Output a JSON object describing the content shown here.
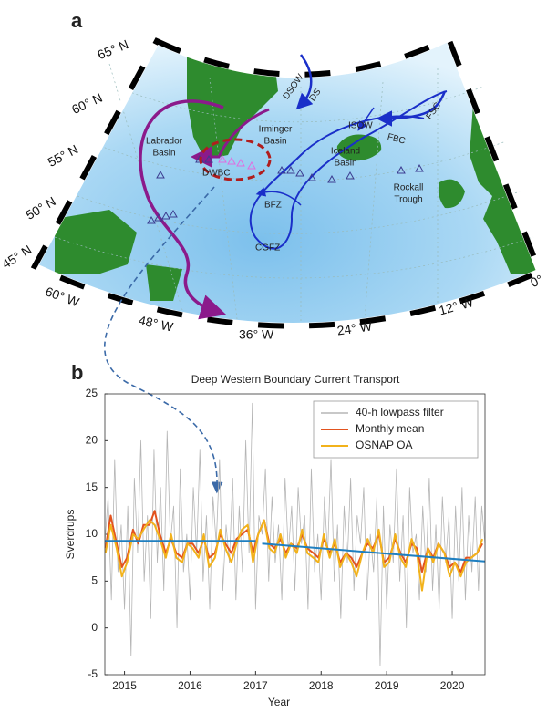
{
  "map": {
    "panel": "a",
    "lat_labels": [
      "65° N",
      "60° N",
      "55° N",
      "50° N",
      "45° N"
    ],
    "lon_labels": [
      "60° W",
      "48° W",
      "36° W",
      "24° W",
      "12° W",
      "0°"
    ],
    "regions": {
      "labrador": [
        "Labrador",
        "Basin"
      ],
      "irminger": [
        "Irminger",
        "Basin"
      ],
      "iceland": [
        "Iceland",
        "Basin"
      ],
      "rockall": [
        "Rockall",
        "Trough"
      ]
    },
    "currents": [
      "DWBC",
      "DSOW",
      "DS",
      "ISOW",
      "FBC",
      "FSC",
      "BFZ",
      "CGFZ"
    ]
  },
  "chart_data": {
    "type": "line",
    "panel": "b",
    "title": "Deep Western Boundary Current Transport",
    "xlabel": "Year",
    "ylabel": "Sverdrups",
    "xlim": [
      2014.7,
      2020.5
    ],
    "xticks": [
      2015,
      2016,
      2017,
      2018,
      2019,
      2020
    ],
    "ylim": [
      -5,
      25
    ],
    "yticks": [
      -5,
      0,
      5,
      10,
      15,
      20,
      25
    ],
    "legend": "upper right",
    "series": [
      {
        "name": "40-h lowpass filter",
        "color": "#b5b5b5",
        "width": 0.8,
        "x": [
          2014.7,
          2014.75,
          2014.8,
          2014.85,
          2014.9,
          2014.95,
          2015,
          2015.05,
          2015.1,
          2015.15,
          2015.2,
          2015.25,
          2015.3,
          2015.35,
          2015.4,
          2015.45,
          2015.5,
          2015.55,
          2015.6,
          2015.65,
          2015.7,
          2015.75,
          2015.8,
          2015.85,
          2015.9,
          2015.95,
          2016,
          2016.05,
          2016.1,
          2016.15,
          2016.2,
          2016.25,
          2016.3,
          2016.35,
          2016.4,
          2016.45,
          2016.5,
          2016.55,
          2016.6,
          2016.65,
          2016.7,
          2016.75,
          2016.8,
          2016.85,
          2016.9,
          2016.95,
          2017,
          2017.05,
          2017.1,
          2017.15,
          2017.2,
          2017.25,
          2017.3,
          2017.35,
          2017.4,
          2017.45,
          2017.5,
          2017.55,
          2017.6,
          2017.65,
          2017.7,
          2017.75,
          2017.8,
          2017.85,
          2017.9,
          2017.95,
          2018,
          2018.05,
          2018.1,
          2018.15,
          2018.2,
          2018.25,
          2018.3,
          2018.35,
          2018.4,
          2018.45,
          2018.5,
          2018.55,
          2018.6,
          2018.65,
          2018.7,
          2018.75,
          2018.8,
          2018.85,
          2018.9,
          2018.95,
          2019,
          2019.05,
          2019.1,
          2019.15,
          2019.2,
          2019.25,
          2019.3,
          2019.35,
          2019.4,
          2019.45,
          2019.5,
          2019.55,
          2019.6,
          2019.65,
          2019.7,
          2019.75,
          2019.8,
          2019.85,
          2019.9,
          2019.95,
          2020,
          2020.05,
          2020.1,
          2020.15,
          2020.2,
          2020.25,
          2020.3,
          2020.35,
          2020.4,
          2020.45,
          2020.5
        ],
        "values": [
          9,
          14,
          3,
          18,
          6,
          11,
          2,
          13,
          -3,
          16,
          8,
          20,
          5,
          12,
          1,
          19,
          7,
          15,
          4,
          21,
          9,
          13,
          0,
          17,
          6,
          10,
          3,
          15,
          8,
          19,
          5,
          12,
          2,
          14,
          9,
          18,
          4,
          11,
          7,
          16,
          3,
          13,
          6,
          20,
          8,
          24,
          2,
          12,
          10,
          17,
          5,
          14,
          7,
          11,
          3,
          16,
          8,
          13,
          4,
          15,
          9,
          12,
          2,
          17,
          6,
          10,
          3,
          14,
          8,
          18,
          5,
          11,
          1,
          13,
          7,
          16,
          4,
          12,
          9,
          15,
          3,
          10,
          6,
          14,
          -4,
          13,
          2,
          11,
          7,
          17,
          5,
          12,
          0,
          15,
          8,
          10,
          3,
          13,
          6,
          16,
          4,
          11,
          2,
          14,
          7,
          12,
          1,
          13,
          5,
          15,
          3,
          12,
          6,
          14,
          4,
          13,
          9
        ]
      },
      {
        "name": "Monthly mean",
        "color": "#e2531f",
        "width": 2,
        "x": [
          2014.71,
          2014.79,
          2014.88,
          2014.96,
          2015.04,
          2015.13,
          2015.21,
          2015.29,
          2015.38,
          2015.46,
          2015.54,
          2015.63,
          2015.71,
          2015.79,
          2015.88,
          2015.96,
          2016.04,
          2016.13,
          2016.21,
          2016.29,
          2016.38,
          2016.46,
          2016.54,
          2016.63,
          2016.71,
          2016.79,
          2016.88,
          2016.96,
          2017.04,
          2017.13,
          2017.21,
          2017.29,
          2017.38,
          2017.46,
          2017.54,
          2017.63,
          2017.71,
          2017.79,
          2017.88,
          2017.96,
          2018.04,
          2018.13,
          2018.21,
          2018.29,
          2018.38,
          2018.46,
          2018.54,
          2018.63,
          2018.71,
          2018.79,
          2018.88,
          2018.96,
          2019.04,
          2019.13,
          2019.21,
          2019.29,
          2019.38,
          2019.46,
          2019.54,
          2019.63,
          2019.71,
          2019.79,
          2019.88,
          2019.96,
          2020.04,
          2020.13,
          2020.21,
          2020.29,
          2020.38,
          2020.46
        ],
        "values": [
          8.5,
          12,
          9,
          6.5,
          7.5,
          10.5,
          9,
          11,
          11,
          12.5,
          10,
          8,
          9.5,
          8,
          7.5,
          9,
          9,
          8,
          9.5,
          7.5,
          8,
          10,
          9,
          8,
          9.5,
          10,
          10.5,
          8,
          10,
          11.5,
          9,
          8.5,
          9.5,
          8,
          9,
          8.5,
          10,
          8.5,
          8,
          7.5,
          9.5,
          8,
          9,
          7,
          8,
          7.5,
          6.5,
          8,
          9,
          8.5,
          10,
          7,
          7.5,
          9.5,
          8,
          7,
          9,
          8.5,
          6,
          8.5,
          7.5,
          9,
          8,
          6.5,
          7,
          6,
          7.5,
          7.5,
          8,
          9
        ]
      },
      {
        "name": "OSNAP OA",
        "color": "#f2b21b",
        "width": 2,
        "x": [
          2014.71,
          2014.79,
          2014.88,
          2014.96,
          2015.04,
          2015.13,
          2015.21,
          2015.29,
          2015.38,
          2015.46,
          2015.54,
          2015.63,
          2015.71,
          2015.79,
          2015.88,
          2015.96,
          2016.04,
          2016.13,
          2016.21,
          2016.29,
          2016.38,
          2016.46,
          2016.54,
          2016.63,
          2016.71,
          2016.79,
          2016.88,
          2016.96,
          2017.04,
          2017.13,
          2017.21,
          2017.29,
          2017.38,
          2017.46,
          2017.54,
          2017.63,
          2017.71,
          2017.79,
          2017.88,
          2017.96,
          2018.04,
          2018.13,
          2018.21,
          2018.29,
          2018.38,
          2018.46,
          2018.54,
          2018.63,
          2018.71,
          2018.79,
          2018.88,
          2018.96,
          2019.04,
          2019.13,
          2019.21,
          2019.29,
          2019.38,
          2019.46,
          2019.54,
          2019.63,
          2019.71,
          2019.79,
          2019.88,
          2019.96,
          2020.04,
          2020.13,
          2020.21,
          2020.29,
          2020.38,
          2020.46
        ],
        "values": [
          8,
          11,
          8.5,
          5.5,
          7,
          10,
          9.5,
          10.5,
          11.5,
          11,
          9.5,
          7.5,
          10,
          7.5,
          7,
          9,
          8.5,
          7.5,
          10,
          6.5,
          7.5,
          10.5,
          8.5,
          7,
          9,
          10.5,
          11,
          7,
          10,
          11.5,
          8.5,
          8,
          10,
          7.5,
          9,
          8,
          10.5,
          8,
          7.5,
          7,
          10,
          7.5,
          9.5,
          6.5,
          8,
          7,
          5.5,
          8,
          9.5,
          8,
          10.5,
          6.5,
          7,
          10,
          7.5,
          6.5,
          9.5,
          8,
          4,
          8.5,
          7,
          9,
          8,
          5.5,
          7,
          5.5,
          7,
          7.5,
          8,
          9.5
        ]
      }
    ],
    "trend_lines": {
      "color": "#1f7fc0",
      "lines": [
        {
          "x": [
            2014.7,
            2017.0
          ],
          "values": [
            9.3,
            9.3
          ]
        },
        {
          "x": [
            2017.1,
            2020.5
          ],
          "values": [
            9.0,
            7.1
          ]
        }
      ]
    }
  }
}
